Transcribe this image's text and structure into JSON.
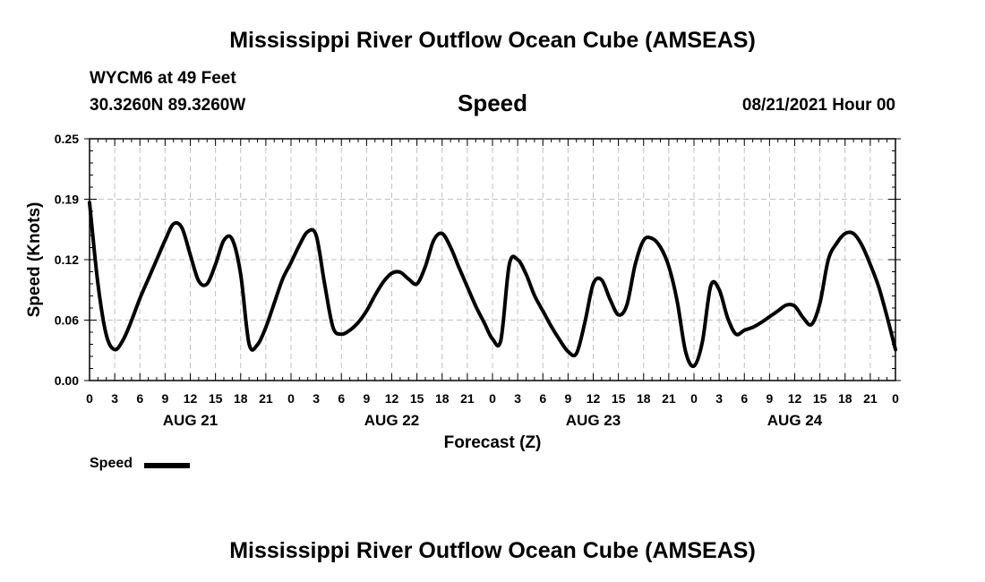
{
  "header": {
    "title": "Mississippi River Outflow Ocean Cube (AMSEAS)",
    "station": "WYCM6 at 49 Feet",
    "location": "30.3260N  89.3260W",
    "variable": "Speed",
    "datetime": "08/21/2021 Hour 00"
  },
  "footer": {
    "title": "Mississippi River Outflow Ocean Cube (AMSEAS)"
  },
  "legend": {
    "label": "Speed"
  },
  "chart_data": {
    "type": "line",
    "title": "Speed",
    "xlabel": "Forecast (Z)",
    "ylabel": "Speed (Knots)",
    "ylim": [
      0,
      0.25
    ],
    "yticks": [
      "0.00",
      "0.06",
      "0.12",
      "0.19",
      "0.25"
    ],
    "xlim": [
      0,
      96
    ],
    "xticks": [
      "0",
      "3",
      "6",
      "9",
      "12",
      "15",
      "18",
      "21",
      "0",
      "3",
      "6",
      "9",
      "12",
      "15",
      "18",
      "21",
      "0",
      "3",
      "6",
      "9",
      "12",
      "15",
      "18",
      "21",
      "0",
      "3",
      "6",
      "9",
      "12",
      "15",
      "18",
      "21",
      "0"
    ],
    "day_labels": [
      "AUG 21",
      "AUG 22",
      "AUG 23",
      "AUG 24"
    ],
    "grid": true,
    "legend_position": "bottom-left",
    "series": [
      {
        "name": "Speed",
        "color": "#000000",
        "x": [
          0,
          1,
          2,
          3,
          4,
          5,
          6,
          7,
          8,
          9,
          10,
          11,
          12,
          13,
          14,
          15,
          16,
          17,
          18,
          19,
          20,
          21,
          22,
          23,
          24,
          25,
          26,
          27,
          28,
          29,
          30,
          31,
          32,
          33,
          34,
          35,
          36,
          37,
          38,
          39,
          40,
          41,
          42,
          43,
          44,
          45,
          46,
          47,
          48,
          49,
          50,
          51,
          52,
          53,
          54,
          55,
          56,
          57,
          58,
          59,
          60,
          61,
          62,
          63,
          64,
          65,
          66,
          67,
          68,
          69,
          70,
          71,
          72,
          73,
          74,
          75,
          76,
          77,
          78,
          79,
          80,
          81,
          82,
          83,
          84,
          85,
          86,
          87,
          88,
          89,
          90,
          91,
          92,
          93,
          94,
          95,
          96
        ],
        "values": [
          0.184,
          0.1,
          0.047,
          0.032,
          0.042,
          0.062,
          0.085,
          0.105,
          0.125,
          0.145,
          0.162,
          0.158,
          0.13,
          0.103,
          0.1,
          0.12,
          0.145,
          0.146,
          0.11,
          0.038,
          0.037,
          0.055,
          0.08,
          0.105,
          0.122,
          0.14,
          0.154,
          0.15,
          0.1,
          0.055,
          0.048,
          0.052,
          0.06,
          0.072,
          0.088,
          0.102,
          0.111,
          0.112,
          0.105,
          0.1,
          0.118,
          0.145,
          0.152,
          0.138,
          0.117,
          0.097,
          0.077,
          0.06,
          0.043,
          0.042,
          0.12,
          0.125,
          0.11,
          0.088,
          0.072,
          0.056,
          0.042,
          0.03,
          0.028,
          0.06,
          0.1,
          0.104,
          0.084,
          0.068,
          0.078,
          0.12,
          0.145,
          0.147,
          0.138,
          0.118,
          0.082,
          0.03,
          0.015,
          0.04,
          0.098,
          0.094,
          0.065,
          0.048,
          0.052,
          0.055,
          0.06,
          0.066,
          0.072,
          0.078,
          0.077,
          0.065,
          0.058,
          0.08,
          0.125,
          0.142,
          0.152,
          0.152,
          0.14,
          0.12,
          0.097,
          0.066,
          0.032
        ]
      }
    ]
  }
}
